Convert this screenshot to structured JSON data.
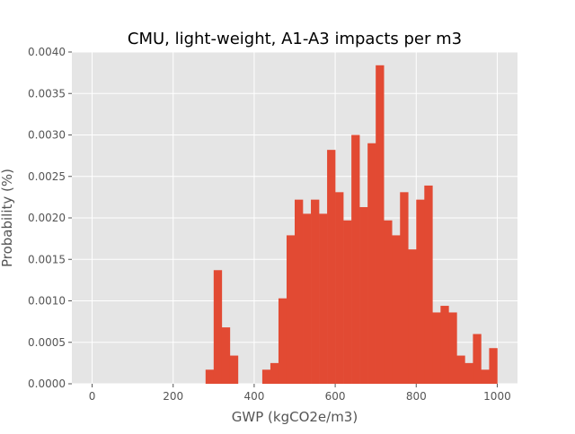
{
  "chart_data": {
    "type": "bar",
    "title": "CMU, light-weight, A1-A3 impacts per m3",
    "xlabel": "GWP (kgCO2e/m3)",
    "ylabel": "Probability (%)",
    "xlim": [
      -50,
      1050
    ],
    "ylim": [
      0,
      0.004
    ],
    "x_ticks": [
      0,
      200,
      400,
      600,
      800,
      1000
    ],
    "x_tick_labels": [
      "0",
      "200",
      "400",
      "600",
      "800",
      "1000"
    ],
    "y_ticks": [
      0,
      0.0005,
      0.001,
      0.0015,
      0.002,
      0.0025,
      0.003,
      0.0035,
      0.004
    ],
    "y_tick_labels": [
      "0.0000",
      "0.0005",
      "0.0010",
      "0.0015",
      "0.0020",
      "0.0025",
      "0.0030",
      "0.0035",
      "0.0040"
    ],
    "grid": true,
    "bar_color": "#E24A33",
    "background_color": "#E5E5E5",
    "bins": [
      {
        "start": 280,
        "end": 300,
        "value": 0.00017
      },
      {
        "start": 300,
        "end": 320,
        "value": 0.00137
      },
      {
        "start": 320,
        "end": 340,
        "value": 0.00068
      },
      {
        "start": 340,
        "end": 360,
        "value": 0.00034
      },
      {
        "start": 420,
        "end": 440,
        "value": 0.00017
      },
      {
        "start": 440,
        "end": 460,
        "value": 0.00025
      },
      {
        "start": 460,
        "end": 480,
        "value": 0.00103
      },
      {
        "start": 480,
        "end": 500,
        "value": 0.00179
      },
      {
        "start": 500,
        "end": 520,
        "value": 0.00222
      },
      {
        "start": 520,
        "end": 540,
        "value": 0.00205
      },
      {
        "start": 540,
        "end": 560,
        "value": 0.00222
      },
      {
        "start": 560,
        "end": 580,
        "value": 0.00205
      },
      {
        "start": 580,
        "end": 600,
        "value": 0.00282
      },
      {
        "start": 600,
        "end": 620,
        "value": 0.00231
      },
      {
        "start": 620,
        "end": 640,
        "value": 0.00197
      },
      {
        "start": 640,
        "end": 660,
        "value": 0.003
      },
      {
        "start": 660,
        "end": 680,
        "value": 0.00213
      },
      {
        "start": 680,
        "end": 700,
        "value": 0.0029
      },
      {
        "start": 700,
        "end": 720,
        "value": 0.00384
      },
      {
        "start": 720,
        "end": 740,
        "value": 0.00197
      },
      {
        "start": 740,
        "end": 760,
        "value": 0.00179
      },
      {
        "start": 760,
        "end": 780,
        "value": 0.00231
      },
      {
        "start": 780,
        "end": 800,
        "value": 0.00162
      },
      {
        "start": 800,
        "end": 820,
        "value": 0.00222
      },
      {
        "start": 820,
        "end": 840,
        "value": 0.00239
      },
      {
        "start": 840,
        "end": 860,
        "value": 0.00086
      },
      {
        "start": 860,
        "end": 880,
        "value": 0.00094
      },
      {
        "start": 880,
        "end": 900,
        "value": 0.00086
      },
      {
        "start": 900,
        "end": 920,
        "value": 0.00034
      },
      {
        "start": 920,
        "end": 940,
        "value": 0.00025
      },
      {
        "start": 940,
        "end": 960,
        "value": 0.0006
      },
      {
        "start": 960,
        "end": 980,
        "value": 0.00017
      },
      {
        "start": 980,
        "end": 1000,
        "value": 0.00043
      }
    ]
  }
}
